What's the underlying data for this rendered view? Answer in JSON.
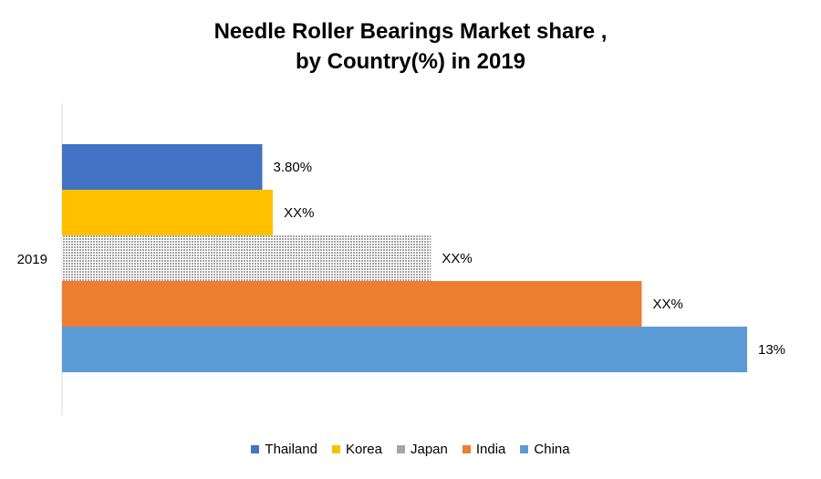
{
  "chart_data": {
    "type": "bar",
    "orientation": "horizontal",
    "title_lines": [
      "Needle Roller Bearings Market share ,",
      "by Country(%) in 2019"
    ],
    "categories": [
      "2019"
    ],
    "xlim": [
      0,
      13
    ],
    "grid": false,
    "legend_position": "bottom",
    "series": [
      {
        "name": "Thailand",
        "values": [
          3.8
        ],
        "label": "3.80%",
        "color": "#4472C4"
      },
      {
        "name": "Korea",
        "values": [
          4.0
        ],
        "label": "XX%",
        "color": "#FFC000"
      },
      {
        "name": "Japan",
        "values": [
          7.0
        ],
        "label": "XX%",
        "color": "#A5A5A5",
        "pattern": "dotted"
      },
      {
        "name": "India",
        "values": [
          11.0
        ],
        "label": "XX%",
        "color": "#ED7D31"
      },
      {
        "name": "China",
        "values": [
          13.0
        ],
        "label": "13%",
        "color": "#5B9BD5"
      }
    ]
  }
}
